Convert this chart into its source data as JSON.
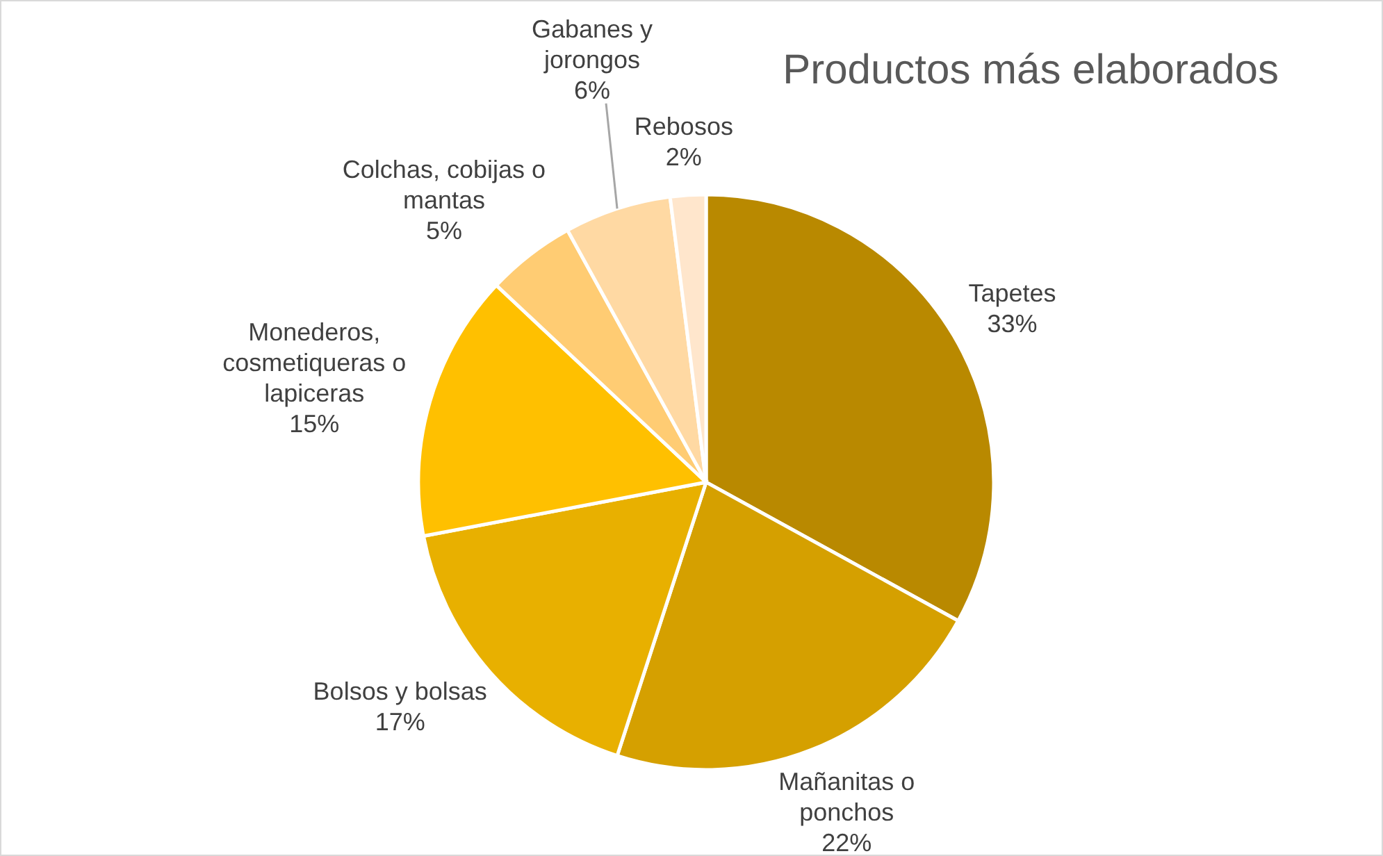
{
  "chart_data": {
    "type": "pie",
    "title": "Productos más elaborados",
    "categories": [
      "Tapetes",
      "Mañanitas o ponchos",
      "Bolsos y bolsas",
      "Monederos, cosmetiqueras o lapiceras",
      "Colchas, cobijas o mantas",
      "Gabanes y jorongos",
      "Rebosos"
    ],
    "values": [
      33,
      22,
      17,
      15,
      5,
      6,
      2
    ],
    "value_labels": [
      "33%",
      "22%",
      "17%",
      "15%",
      "5%",
      "6%",
      "2%"
    ],
    "colors": [
      "#b98900",
      "#d5a000",
      "#e8b000",
      "#ffc000",
      "#ffcc73",
      "#ffd9a3",
      "#ffe6cc"
    ]
  }
}
